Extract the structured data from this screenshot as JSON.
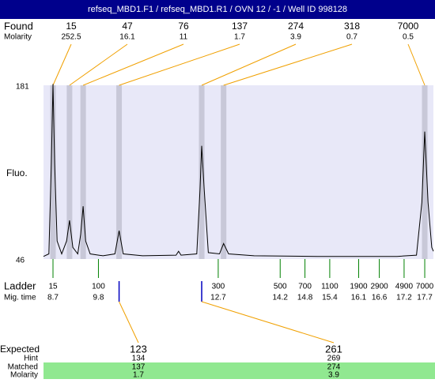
{
  "header": {
    "title": "refseq_MBD1.F1 / refseq_MBD1.R1 / OVN 12 / -1 / Well ID 998128"
  },
  "found": {
    "label": "Found",
    "molarity_label": "Molarity",
    "sizes": [
      15,
      47,
      76,
      137,
      274,
      318,
      7000
    ],
    "molarity": [
      252.5,
      16.1,
      11,
      1.7,
      3.9,
      0.7,
      0.5
    ],
    "times": [
      8.7,
      9.1,
      9.43,
      10.3,
      12.3,
      12.83,
      17.7
    ]
  },
  "plot": {
    "y_label": "Fluo.",
    "xlim": [
      8.47,
      17.91
    ],
    "ylim": [
      46,
      181
    ],
    "yticks": [
      46,
      181
    ],
    "trace": {
      "x": [
        8.47,
        8.6,
        8.66,
        8.7,
        8.74,
        8.8,
        8.91,
        9.03,
        9.1,
        9.18,
        9.3,
        9.37,
        9.43,
        9.49,
        9.6,
        9.91,
        10.2,
        10.3,
        10.4,
        10.87,
        11.68,
        11.74,
        11.8,
        12.18,
        12.26,
        12.3,
        12.36,
        12.46,
        12.73,
        12.83,
        12.95,
        13.57,
        15.1,
        17.03,
        17.5,
        17.63,
        17.7,
        17.78,
        17.87,
        17.91
      ],
      "values": [
        48,
        50,
        120,
        182,
        120,
        60,
        50,
        60,
        76,
        55,
        50,
        65,
        87,
        60,
        50,
        48.5,
        50,
        68,
        50,
        48.5,
        49,
        52,
        49,
        50,
        100,
        134,
        100,
        51,
        50,
        58,
        50,
        48.5,
        48,
        48,
        49,
        90,
        145,
        90,
        55,
        52
      ]
    }
  },
  "ladder": {
    "label": "Ladder",
    "time_label": "Mig. time",
    "sizes": [
      15,
      100,
      300,
      500,
      700,
      1100,
      1900,
      2900,
      4900,
      7000
    ],
    "times": [
      8.7,
      9.8,
      12.7,
      14.2,
      14.8,
      15.4,
      16.1,
      16.6,
      17.2,
      17.7
    ]
  },
  "expected": {
    "label": "Expected",
    "hint_label": "Hint",
    "matched_label": "Matched",
    "molarity_label": "Molarity",
    "sizes": [
      123,
      261
    ],
    "hint": [
      134,
      269
    ],
    "matched": [
      137,
      274
    ],
    "molarity": [
      1.7,
      3.9
    ],
    "times": [
      10.3,
      12.3
    ]
  }
}
